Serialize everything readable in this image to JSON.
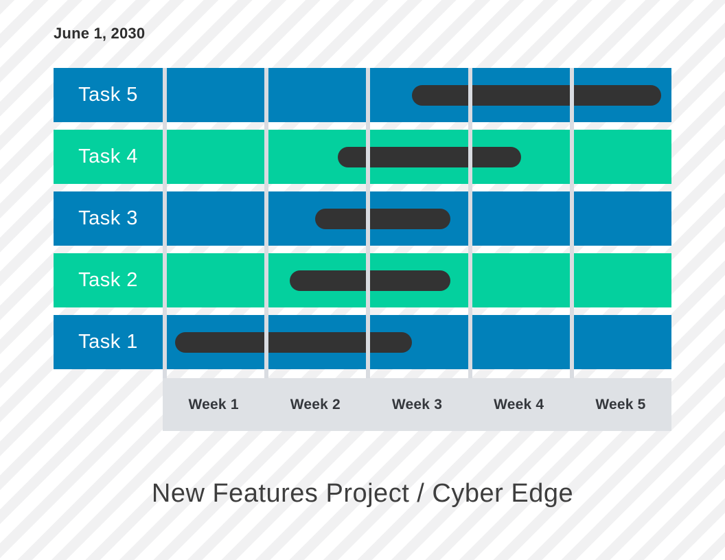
{
  "header": {
    "date": "June 1, 2030"
  },
  "chart_data": {
    "type": "bar",
    "variant": "gantt",
    "title": "New Features Project / Cyber Edge",
    "date_label": "June 1, 2030",
    "xlabel": "",
    "ylabel": "",
    "x_axis_unit": "weeks",
    "x_range_weeks": [
      0,
      5
    ],
    "week_labels": [
      "Week 1",
      "Week 2",
      "Week 3",
      "Week 4",
      "Week 5"
    ],
    "grid": "vertical-lines-on",
    "legend": "none",
    "tasks_top_to_bottom": [
      {
        "label": "Task 5",
        "row_color": "#0181ba",
        "bar_start_week": 2.45,
        "bar_end_week": 4.9
      },
      {
        "label": "Task 4",
        "row_color": "#04d09e",
        "bar_start_week": 1.72,
        "bar_end_week": 3.52
      },
      {
        "label": "Task 3",
        "row_color": "#0181ba",
        "bar_start_week": 1.5,
        "bar_end_week": 2.83
      },
      {
        "label": "Task 2",
        "row_color": "#04d09e",
        "bar_start_week": 1.25,
        "bar_end_week": 2.83
      },
      {
        "label": "Task 1",
        "row_color": "#0181ba",
        "bar_start_week": 0.12,
        "bar_end_week": 2.45
      }
    ],
    "colors": {
      "bar": "#333333",
      "row_blue": "#0181ba",
      "row_green": "#04d09e",
      "footer_bg": "#dee1e5",
      "grid_line": "#d9dce1",
      "stripe_gray": "#f1f1f2",
      "stripe_white": "#ffffff",
      "text_dark": "#2d2d2d",
      "task_label_text": "#ffffff"
    }
  },
  "footer": {
    "title": "New Features Project / Cyber Edge"
  }
}
